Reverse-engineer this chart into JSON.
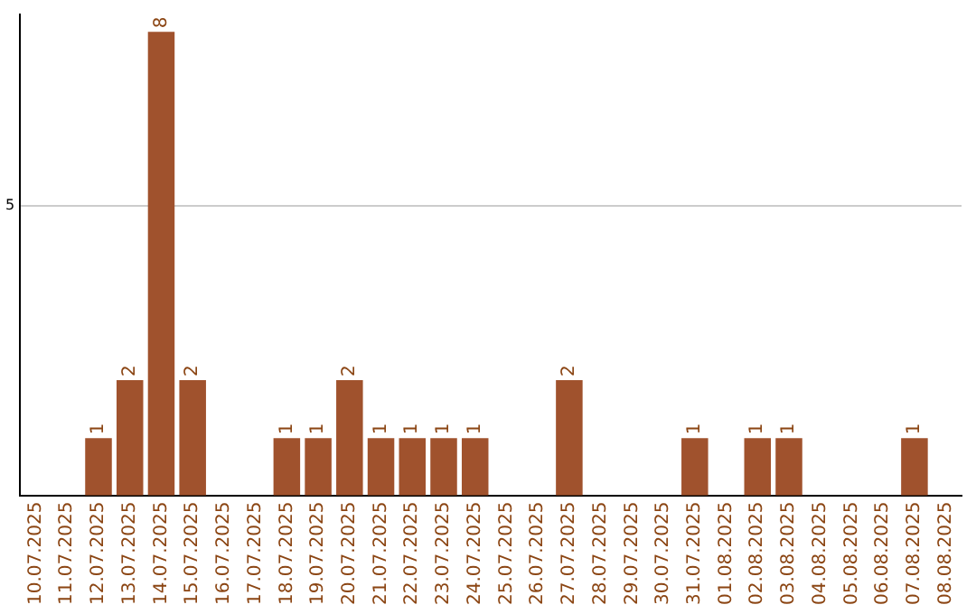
{
  "chart_data": {
    "type": "bar",
    "categories": [
      "10.07.2025",
      "11.07.2025",
      "12.07.2025",
      "13.07.2025",
      "14.07.2025",
      "15.07.2025",
      "16.07.2025",
      "17.07.2025",
      "18.07.2025",
      "19.07.2025",
      "20.07.2025",
      "21.07.2025",
      "22.07.2025",
      "23.07.2025",
      "24.07.2025",
      "25.07.2025",
      "26.07.2025",
      "27.07.2025",
      "28.07.2025",
      "29.07.2025",
      "30.07.2025",
      "31.07.2025",
      "01.08.2025",
      "02.08.2025",
      "03.08.2025",
      "04.08.2025",
      "05.08.2025",
      "06.08.2025",
      "07.08.2025",
      "08.08.2025"
    ],
    "values": [
      0,
      0,
      1,
      2,
      8,
      2,
      0,
      0,
      1,
      1,
      2,
      1,
      1,
      1,
      1,
      0,
      0,
      2,
      0,
      0,
      0,
      1,
      0,
      1,
      1,
      0,
      0,
      0,
      1,
      0
    ],
    "value_labels": [
      null,
      null,
      "1",
      "2",
      "8",
      "2",
      null,
      null,
      "1",
      "1",
      "2",
      "1",
      "1",
      "1",
      "1",
      null,
      null,
      "2",
      null,
      null,
      null,
      "1",
      null,
      "1",
      "1",
      null,
      null,
      null,
      "1",
      null
    ],
    "color": "#a0522d",
    "ylim": [
      0,
      8.3
    ],
    "yticks": [
      {
        "value": 0,
        "label": null
      },
      5
    ],
    "grid": "y",
    "legend": false
  }
}
